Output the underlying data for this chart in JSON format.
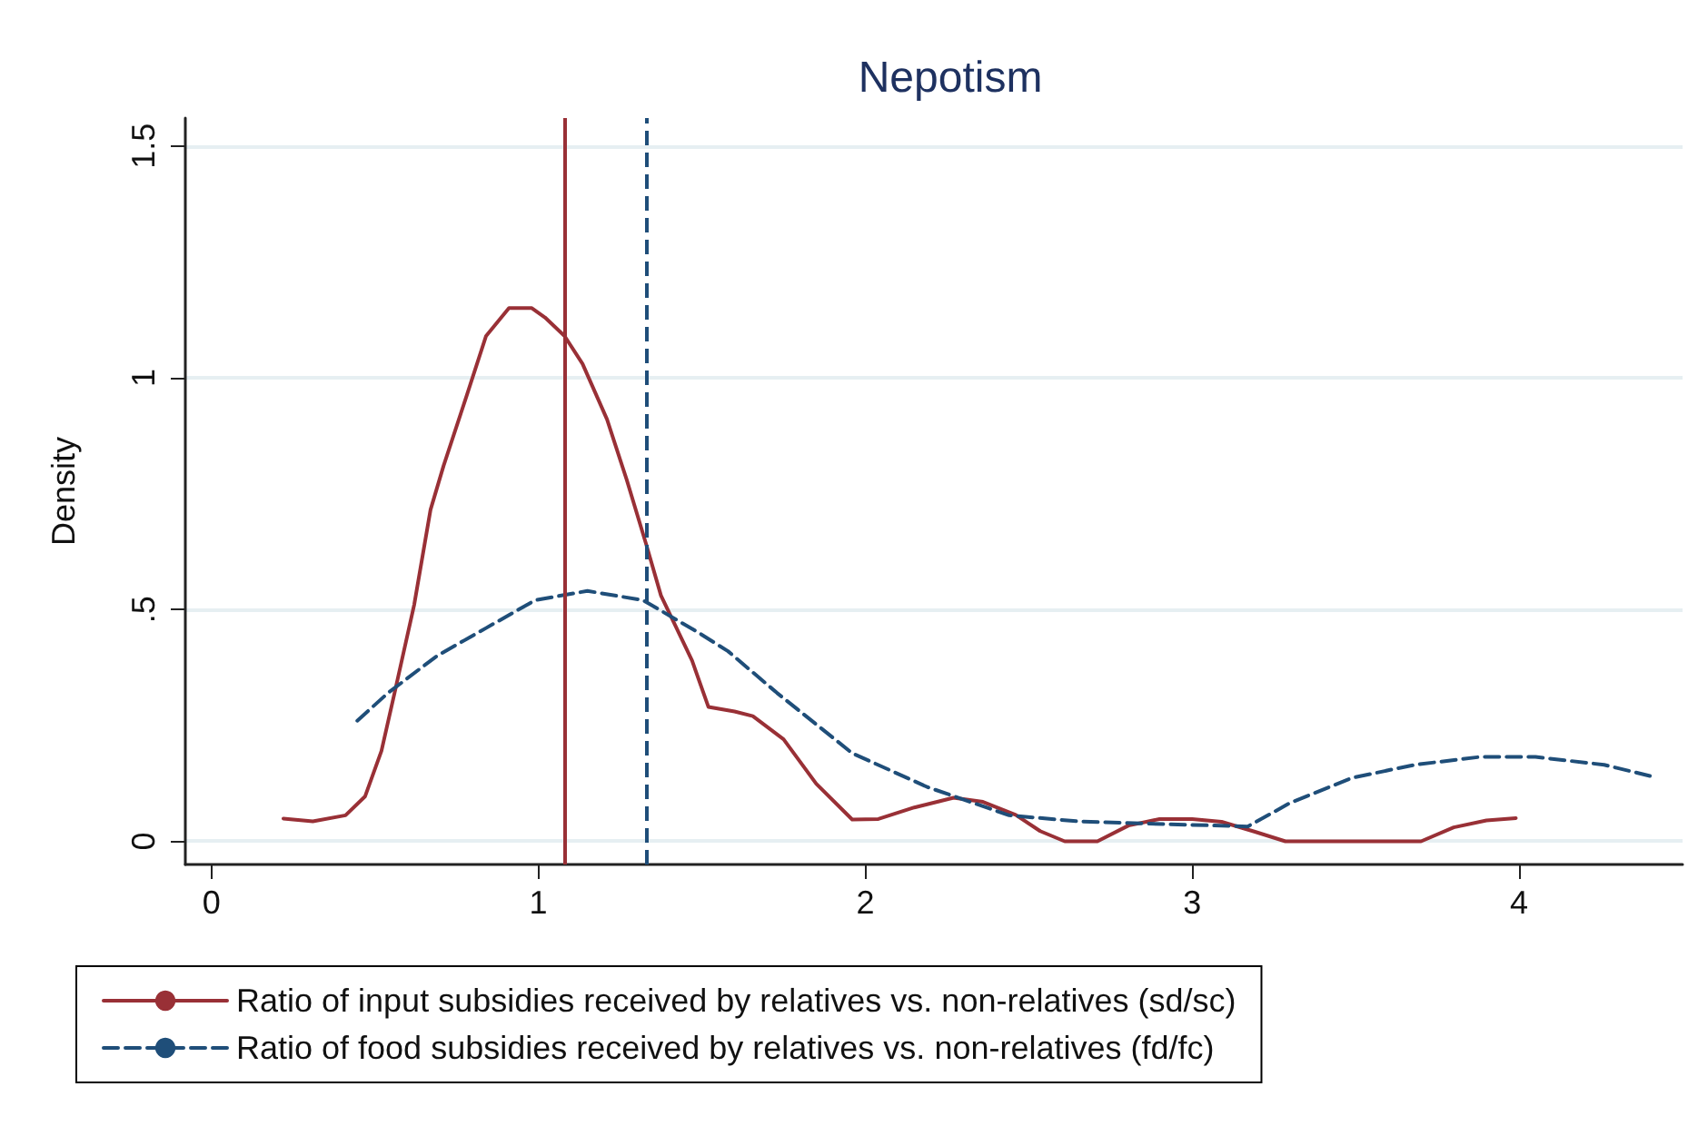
{
  "chart_data": {
    "type": "line",
    "title": "Nepotism",
    "ylabel": "Density",
    "xlim": [
      -0.08,
      4.5
    ],
    "ylim": [
      -0.05,
      1.56
    ],
    "xticks": [
      0,
      1,
      2,
      3,
      4
    ],
    "yticks": [
      0,
      {
        "value": 0.5,
        "label": ".5"
      },
      1,
      1.5
    ],
    "grid": "y",
    "legend": "bottom",
    "marker": "none",
    "series": [
      {
        "name": "Ratio of input subsidies received by relatives vs. non-relatives (sd/sc)",
        "color": "#993036",
        "line_style": "solid",
        "x": [
          0.22,
          0.31,
          0.41,
          0.47,
          0.52,
          0.56,
          0.62,
          0.67,
          0.71,
          0.78,
          0.84,
          0.91,
          0.98,
          1.02,
          1.08,
          1.135,
          1.21,
          1.27,
          1.33,
          1.375,
          1.47,
          1.52,
          1.6,
          1.656,
          1.75,
          1.85,
          1.96,
          2.04,
          2.15,
          2.27,
          2.36,
          2.46,
          2.535,
          2.61,
          2.71,
          2.805,
          2.9,
          3.0,
          3.09,
          3.19,
          3.285,
          3.7,
          3.8,
          3.9,
          3.99
        ],
        "values": [
          0.049,
          0.043,
          0.056,
          0.097,
          0.195,
          0.32,
          0.51,
          0.715,
          0.81,
          0.96,
          1.09,
          1.15,
          1.15,
          1.13,
          1.09,
          1.03,
          0.91,
          0.78,
          0.64,
          0.53,
          0.39,
          0.29,
          0.28,
          0.27,
          0.22,
          0.124,
          0.047,
          0.048,
          0.073,
          0.094,
          0.085,
          0.057,
          0.022,
          0,
          0,
          0.034,
          0.048,
          0.048,
          0.042,
          0.021,
          0,
          0,
          0.03,
          0.045,
          0.05
        ]
      },
      {
        "name": "Ratio of food subsidies received by relatives vs. non-relatives (fd/fc)",
        "color": "#1f4e79",
        "line_style": "dashed",
        "x": [
          0.446,
          0.54,
          0.69,
          0.84,
          0.99,
          1.15,
          1.32,
          1.49,
          1.58,
          1.73,
          1.96,
          2.19,
          2.44,
          2.65,
          2.92,
          3.17,
          3.3,
          3.49,
          3.68,
          3.88,
          4.05,
          4.26,
          4.4
        ],
        "values": [
          0.26,
          0.32,
          0.4,
          0.46,
          0.52,
          0.54,
          0.52,
          0.45,
          0.41,
          0.32,
          0.19,
          0.117,
          0.056,
          0.043,
          0.037,
          0.032,
          0.083,
          0.137,
          0.165,
          0.182,
          0.182,
          0.165,
          0.141
        ]
      }
    ],
    "ref_lines": [
      {
        "axis": "x",
        "value": 1.076,
        "color": "#993036",
        "line_style": "solid"
      },
      {
        "axis": "x",
        "value": 1.33,
        "color": "#1f4e79",
        "line_style": "dashed"
      }
    ]
  }
}
